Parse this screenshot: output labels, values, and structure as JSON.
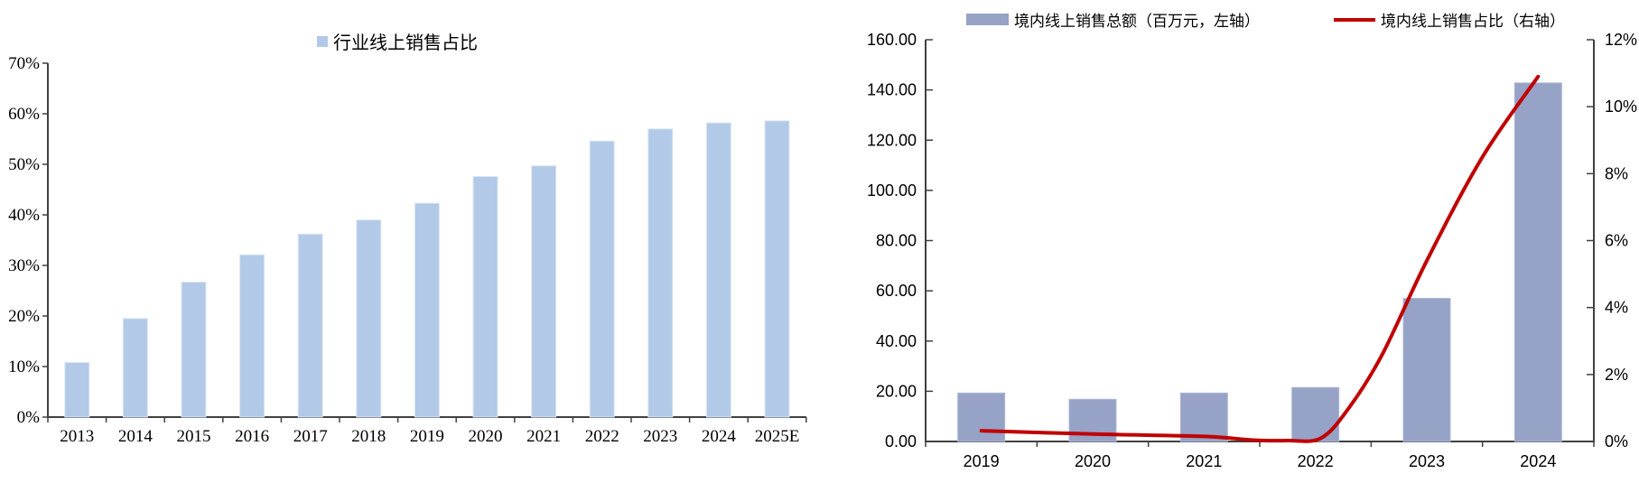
{
  "figure": {
    "background": "#ffffff",
    "text_color": "#000000",
    "axis_color": "#404040"
  },
  "chart_data": [
    {
      "type": "bar",
      "title": "",
      "legend": [
        "行业线上销售占比"
      ],
      "legend_position": "top-center",
      "bar_color": "#B3C9E8",
      "bar_edge_color": "#DCE6F4",
      "categories": [
        "2013",
        "2014",
        "2015",
        "2016",
        "2017",
        "2018",
        "2019",
        "2020",
        "2021",
        "2022",
        "2023",
        "2024",
        "2025E"
      ],
      "values": [
        10.8,
        19.5,
        26.7,
        32.1,
        36.2,
        39.0,
        42.3,
        47.6,
        49.7,
        54.6,
        57.0,
        58.2,
        58.6
      ],
      "unit": "%",
      "ylim": [
        0,
        70
      ],
      "ytick_step": 10,
      "ytick_labels": [
        "0%",
        "10%",
        "20%",
        "30%",
        "40%",
        "50%",
        "60%",
        "70%"
      ],
      "grid": false
    },
    {
      "type": "bar+line",
      "title": "",
      "legend_position": "top",
      "categories": [
        "2019",
        "2020",
        "2021",
        "2022",
        "2023",
        "2024"
      ],
      "series": [
        {
          "name": "境内线上销售总额（百万元，左轴）",
          "type": "bar",
          "axis": "left",
          "color": "#96A2C6",
          "edge_color": "#AFB9D6",
          "values": [
            19.3,
            16.8,
            19.3,
            21.5,
            57.0,
            142.8
          ]
        },
        {
          "name": "境内线上销售占比（右轴）",
          "type": "line",
          "axis": "right",
          "color": "#C00000",
          "values": [
            0.3,
            0.2,
            0.15,
            0.05,
            5.4,
            10.9
          ],
          "shape_points": [
            [
              0,
              0.32
            ],
            [
              1,
              0.22
            ],
            [
              2,
              0.15
            ],
            [
              2.45,
              0.04
            ],
            [
              2.75,
              0.0
            ],
            [
              3.05,
              0.1
            ],
            [
              3.3,
              1.0
            ],
            [
              3.6,
              2.6
            ],
            [
              4,
              5.4
            ],
            [
              4.5,
              8.5
            ],
            [
              5,
              10.9
            ]
          ]
        }
      ],
      "left_ylim": [
        0,
        160
      ],
      "left_ytick_labels": [
        "0.00",
        "20.00",
        "40.00",
        "60.00",
        "80.00",
        "100.00",
        "120.00",
        "140.00",
        "160.00"
      ],
      "right_ylim": [
        0,
        12
      ],
      "right_ytick_labels": [
        "0%",
        "2%",
        "4%",
        "6%",
        "8%",
        "10%",
        "12%"
      ],
      "grid": false
    }
  ]
}
